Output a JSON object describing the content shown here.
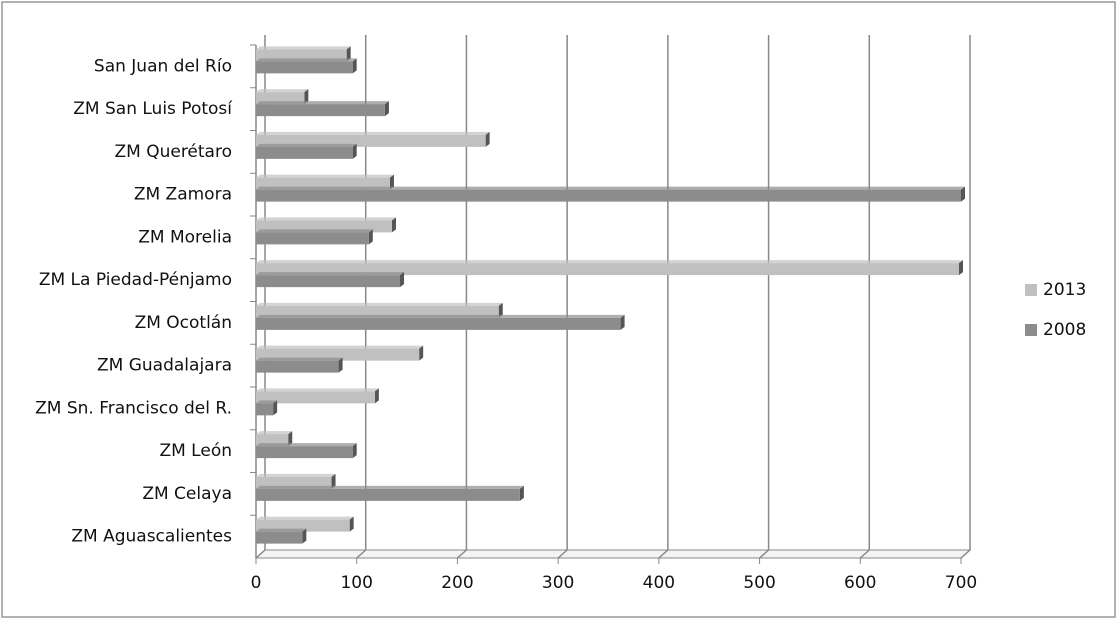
{
  "chart_data": {
    "type": "hbar",
    "categories": [
      "San Juan del Río",
      "ZM San Luis Potosí",
      "ZM Querétaro",
      "ZM Zamora",
      "ZM Morelia",
      "ZM La Piedad-Pénjamo",
      "ZM Ocotlán",
      "ZM Guadalajara",
      "ZM Sn. Francisco del R.",
      "ZM León",
      "ZM Celaya",
      "ZM Aguascalientes"
    ],
    "series": [
      {
        "name": "2013",
        "color": "#c0c0c0",
        "values": [
          90,
          48,
          228,
          133,
          135,
          698,
          241,
          162,
          118,
          32,
          75,
          93
        ]
      },
      {
        "name": "2008",
        "color": "#8c8c8c",
        "values": [
          96,
          128,
          96,
          700,
          112,
          143,
          362,
          82,
          17,
          96,
          262,
          46
        ]
      }
    ],
    "xlim": [
      0,
      700
    ],
    "xticks": [
      0,
      100,
      200,
      300,
      400,
      500,
      600,
      700
    ],
    "grid": true,
    "legend": "right"
  }
}
